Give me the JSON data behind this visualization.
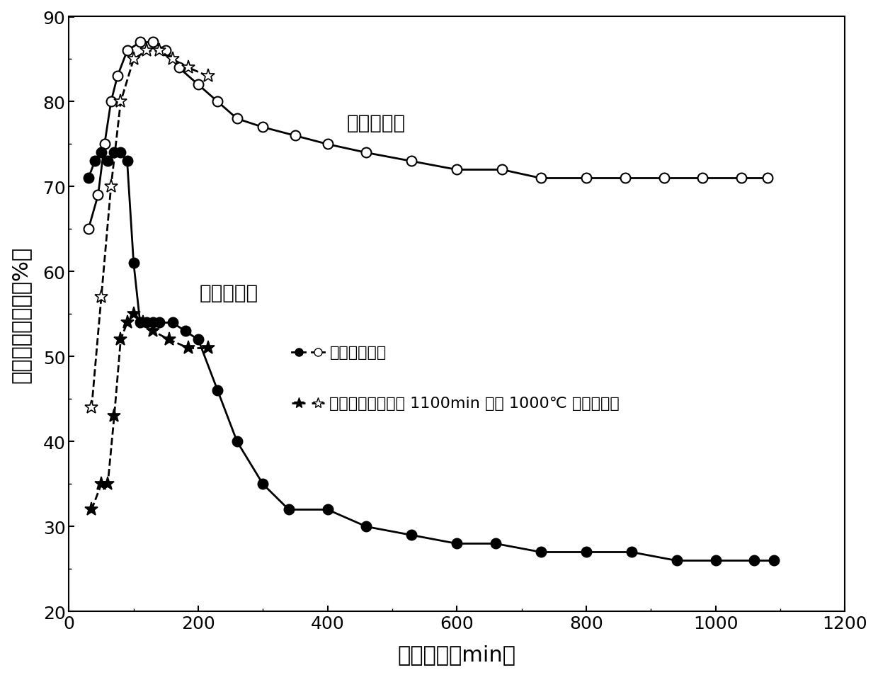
{
  "title": "",
  "xlabel": "反应时间（min）",
  "ylabel": "转化率和选择性（%）",
  "xlim": [
    0,
    1200
  ],
  "ylim": [
    20,
    90
  ],
  "xticks": [
    0,
    200,
    400,
    600,
    800,
    1000,
    1200
  ],
  "yticks": [
    20,
    30,
    40,
    50,
    60,
    70,
    80,
    90
  ],
  "label_propylene_selectivity": "丙烯选择性",
  "label_propane_conversion": "丙烷转化率",
  "circle_open_x": [
    30,
    45,
    55,
    65,
    75,
    90,
    110,
    130,
    150,
    170,
    200,
    230,
    260,
    300,
    350,
    400,
    460,
    530,
    600,
    670,
    730,
    800,
    860,
    920,
    980,
    1040,
    1080
  ],
  "circle_open_y": [
    65,
    69,
    75,
    80,
    83,
    86,
    87,
    87,
    86,
    84,
    82,
    80,
    78,
    77,
    76,
    75,
    74,
    73,
    72,
    72,
    71,
    71,
    71,
    71,
    71,
    71,
    71
  ],
  "star_open_x": [
    35,
    50,
    65,
    80,
    100,
    120,
    140,
    160,
    185,
    215
  ],
  "star_open_y": [
    44,
    57,
    70,
    80,
    85,
    86,
    86,
    85,
    84,
    83
  ],
  "circle_filled_x": [
    30,
    40,
    50,
    60,
    70,
    80,
    90,
    100,
    110,
    120,
    130,
    140,
    160,
    180,
    200,
    230,
    260,
    300,
    340,
    400,
    460,
    530,
    600,
    660,
    730,
    800,
    870,
    940,
    1000,
    1060,
    1090
  ],
  "circle_filled_y": [
    71,
    73,
    74,
    73,
    74,
    74,
    73,
    61,
    54,
    54,
    54,
    54,
    54,
    53,
    52,
    46,
    40,
    35,
    32,
    32,
    30,
    29,
    28,
    28,
    27,
    27,
    27,
    26,
    26,
    26,
    26
  ],
  "star_filled_x": [
    35,
    50,
    60,
    70,
    80,
    90,
    100,
    115,
    130,
    155,
    185,
    215
  ],
  "star_filled_y": [
    32,
    35,
    35,
    43,
    52,
    54,
    55,
    54,
    53,
    52,
    51,
    51
  ],
  "background_color": "#ffffff",
  "line_color": "#000000"
}
